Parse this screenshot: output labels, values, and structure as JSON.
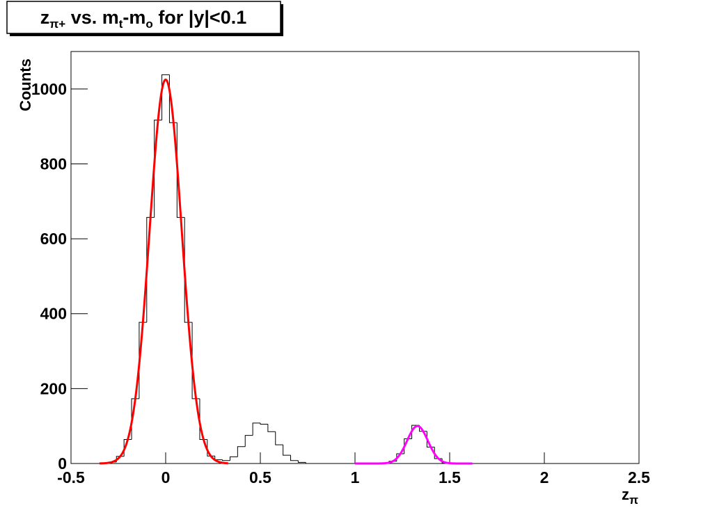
{
  "chart_data": {
    "type": "histogram",
    "title": [
      "z",
      "π+",
      " vs. m",
      "t",
      "-m",
      "o",
      " for |y|<0.1"
    ],
    "x_label": [
      "z",
      "π"
    ],
    "y_label": "Counts",
    "bins": [
      -0.3,
      -0.26,
      -0.22,
      -0.18,
      -0.14,
      -0.1,
      -0.06,
      -0.02,
      0.02,
      0.06,
      0.1,
      0.14,
      0.18,
      0.22,
      0.26,
      0.3,
      0.34,
      0.38,
      0.42,
      0.46,
      0.5,
      0.54,
      0.58,
      0.62,
      0.66,
      0.7,
      0.74,
      0.78,
      0.82,
      0.86,
      0.9,
      0.94,
      0.98,
      1.02,
      1.06,
      1.1,
      1.14,
      1.18,
      1.22,
      1.26,
      1.3,
      1.34,
      1.38,
      1.42,
      1.46,
      1.5,
      1.54,
      1.58,
      1.62
    ],
    "values": [
      4,
      19,
      64,
      173,
      377,
      657,
      917,
      1038,
      910,
      657,
      377,
      173,
      64,
      20,
      10,
      8,
      18,
      45,
      75,
      108,
      105,
      85,
      50,
      22,
      8,
      3,
      0,
      0,
      0,
      0,
      0,
      0,
      0,
      0,
      0,
      0,
      1,
      6,
      26,
      66,
      102,
      86,
      44,
      13,
      2,
      0,
      0,
      0
    ],
    "color": "#000000",
    "fits": [
      {
        "color": "#ff0000",
        "amplitude": 1025,
        "mean": 0,
        "sigma": 0.085,
        "range": [
          -0.35,
          0.33
        ]
      },
      {
        "color": "#ff00ff",
        "amplitude": 100,
        "mean": 1.33,
        "sigma": 0.055,
        "range": [
          1,
          1.62
        ]
      }
    ],
    "xlim": [
      -0.5,
      2.5
    ],
    "xticks": [
      -0.5,
      0,
      0.5,
      1,
      1.5,
      2,
      2.5
    ],
    "ylim": [
      0,
      1100
    ],
    "yticks": [
      0,
      200,
      400,
      600,
      800,
      1000
    ]
  }
}
